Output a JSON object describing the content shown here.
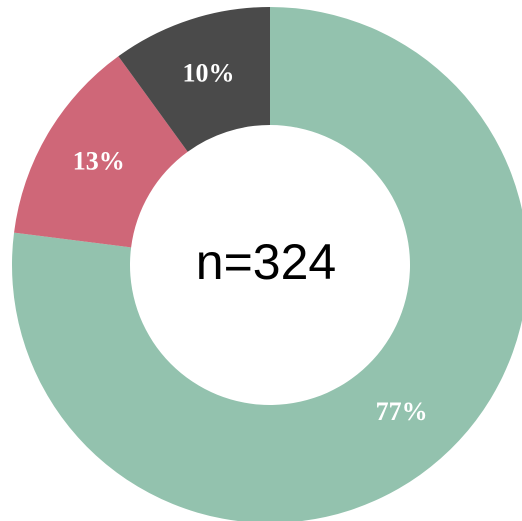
{
  "chart_data": {
    "type": "pie",
    "donut": true,
    "values": [
      77,
      13,
      10
    ],
    "value_labels": [
      "77%",
      "13%",
      "10%"
    ],
    "colors": [
      "#93c2ae",
      "#cf6778",
      "#4a4a4a"
    ],
    "center_label": "n=324"
  }
}
